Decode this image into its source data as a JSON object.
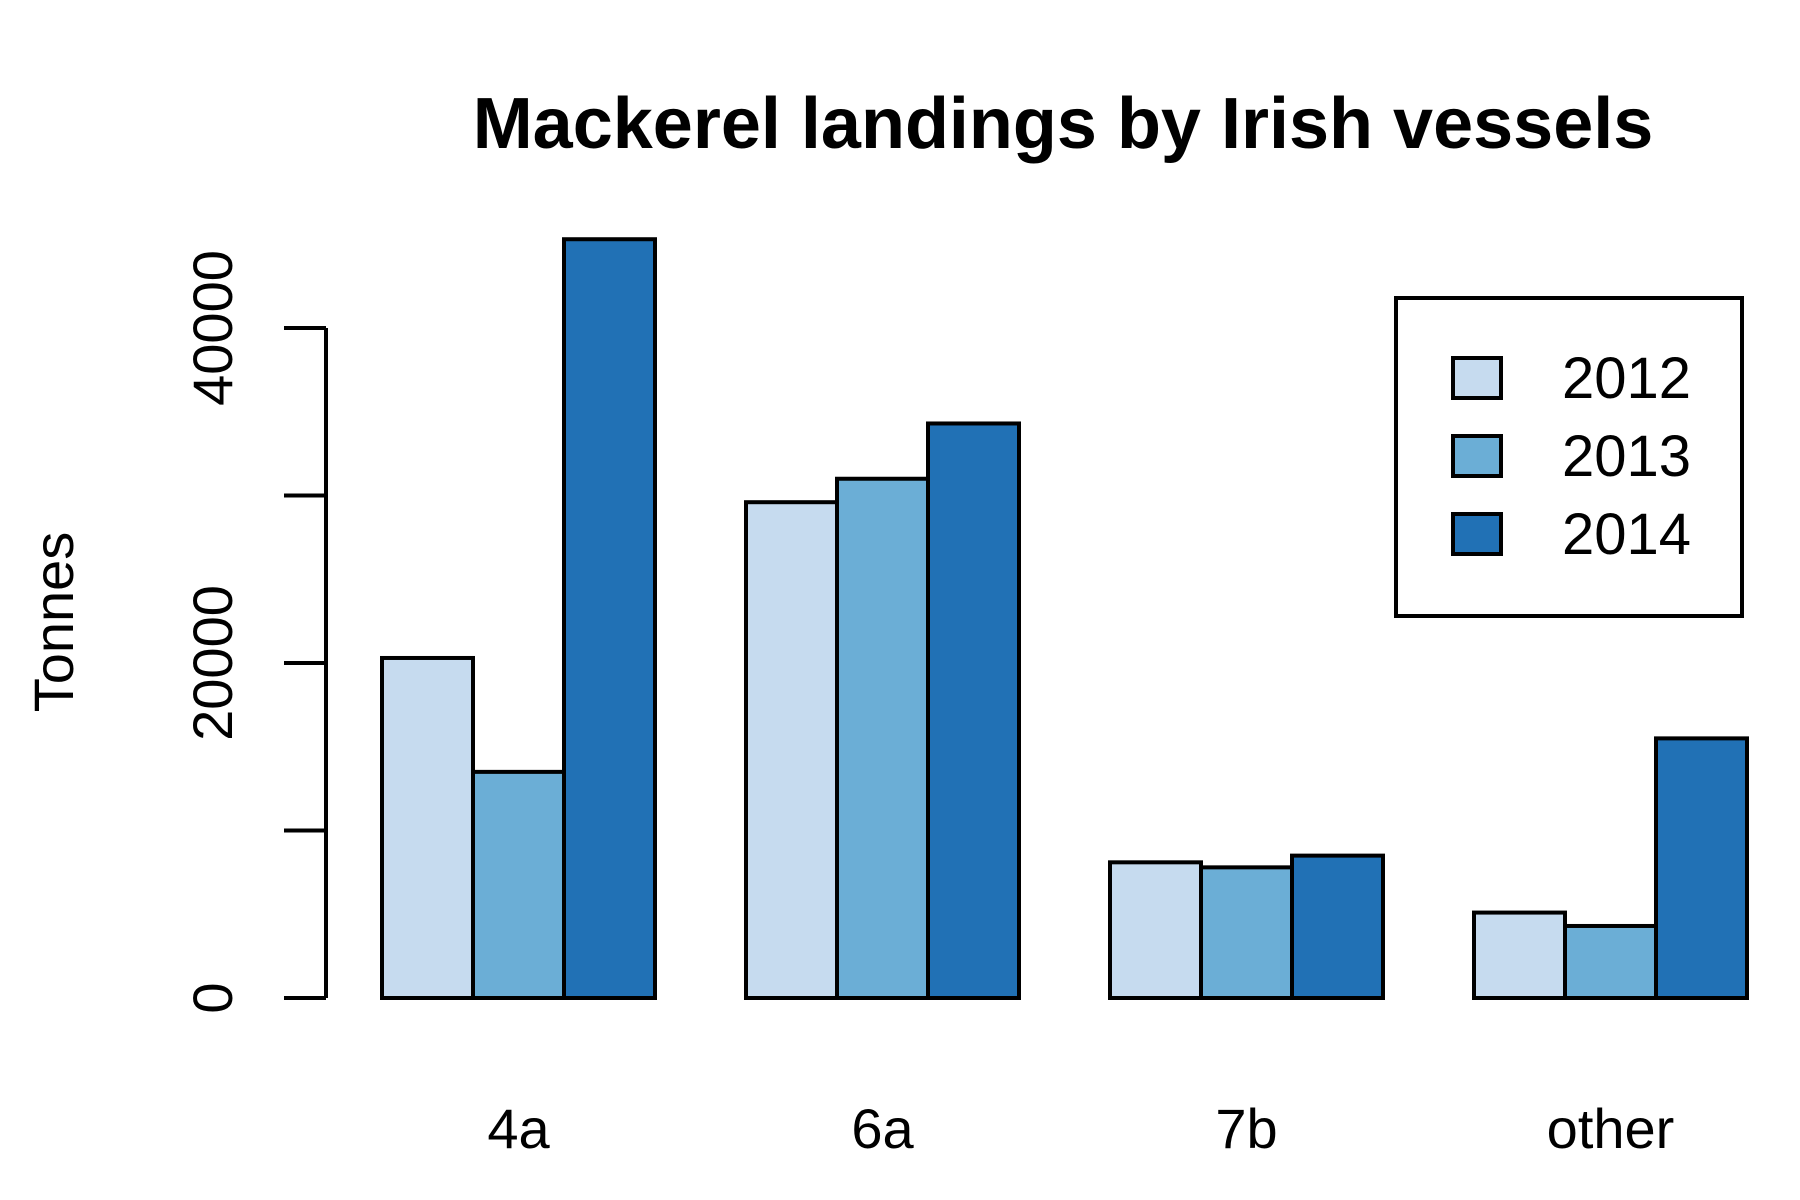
{
  "chart_data": {
    "type": "bar",
    "title": "Mackerel landings by Irish vessels",
    "xlabel": "",
    "ylabel": "Tonnes",
    "categories": [
      "4a",
      "6a",
      "7b",
      "other"
    ],
    "series": [
      {
        "name": "2012",
        "color": "#c6dbef",
        "values": [
          20300,
          29600,
          8100,
          5100
        ]
      },
      {
        "name": "2013",
        "color": "#6baed6",
        "values": [
          13500,
          31000,
          7800,
          4300
        ]
      },
      {
        "name": "2014",
        "color": "#2171b5",
        "values": [
          45300,
          34300,
          8500,
          15500
        ]
      }
    ],
    "yticks": [
      0,
      10000,
      20000,
      30000,
      40000
    ],
    "ytick_labels": [
      "0",
      "",
      "20000",
      "",
      "40000"
    ],
    "ylim": [
      0,
      45300
    ],
    "grid": false,
    "legend_position": "top-right"
  }
}
